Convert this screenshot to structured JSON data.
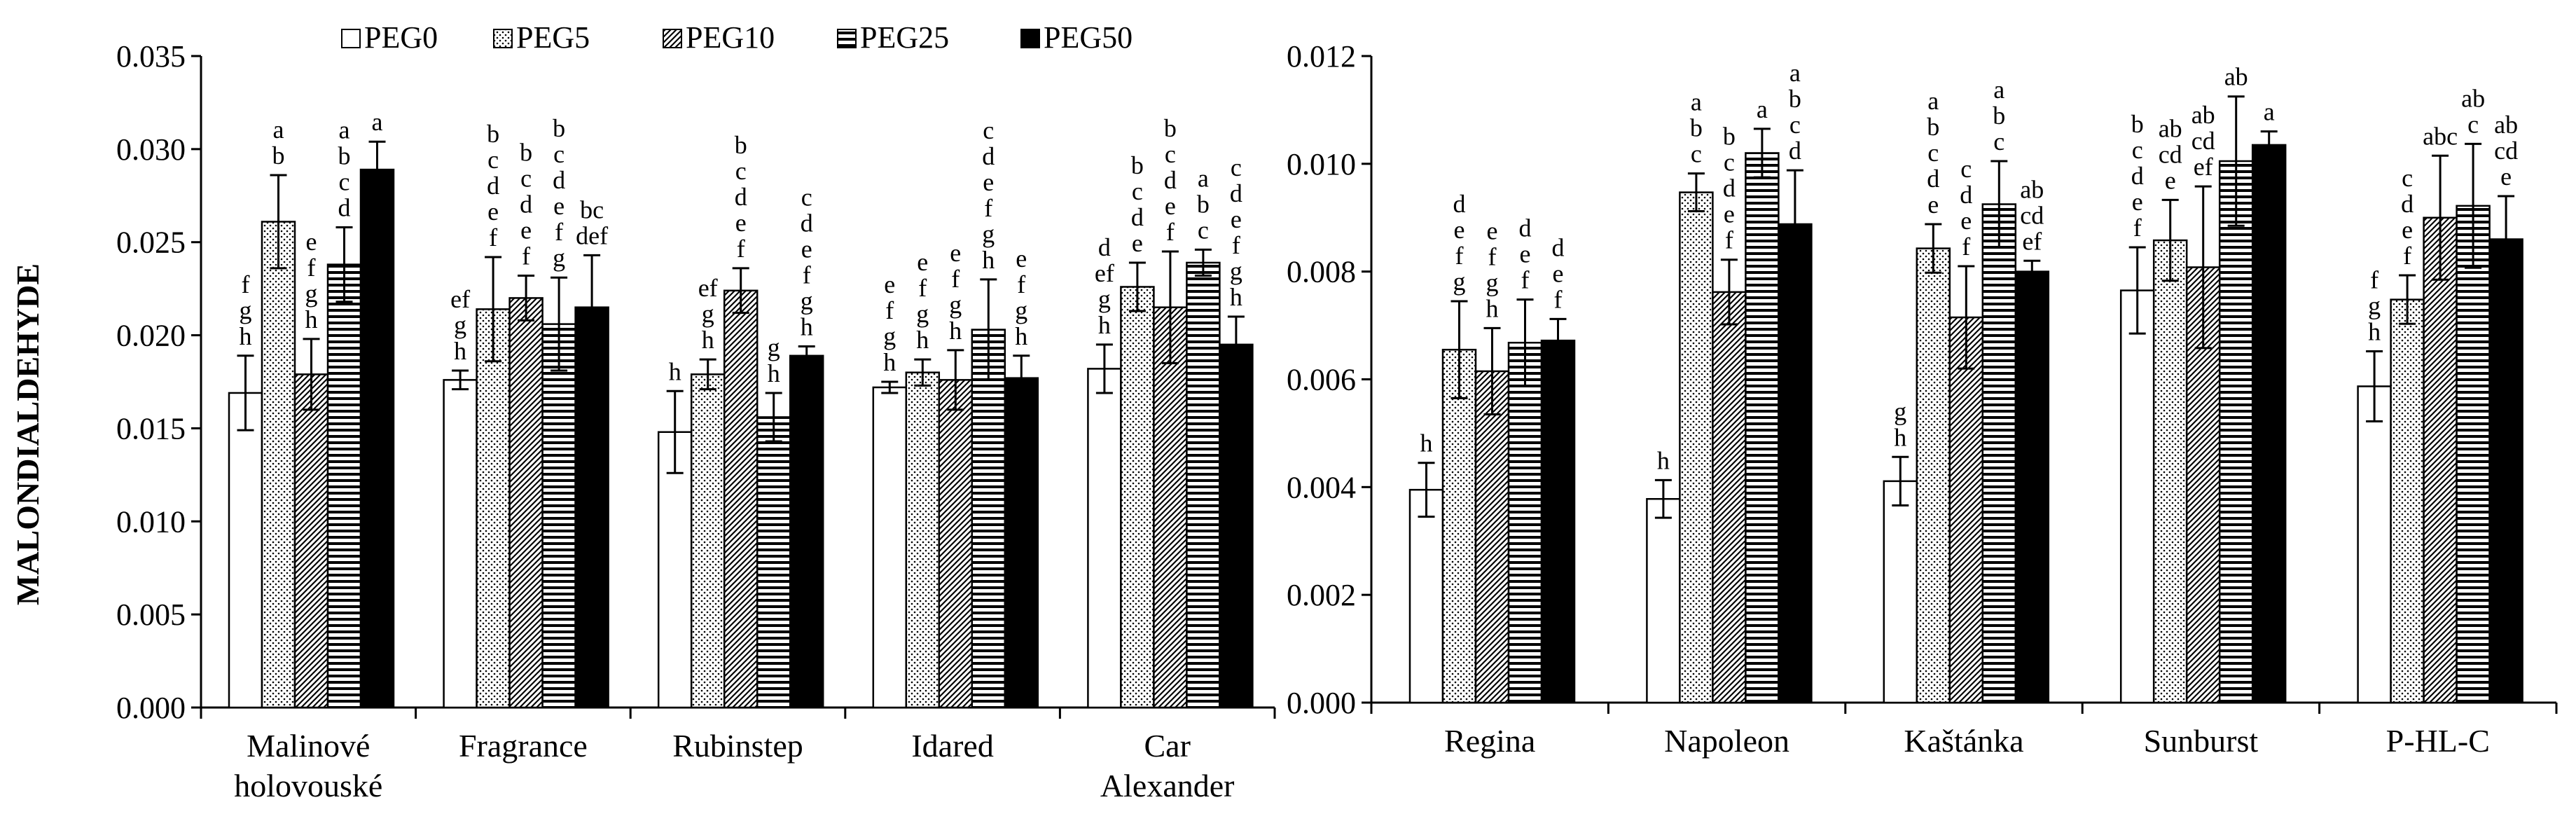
{
  "chart_data": [
    {
      "type": "bar",
      "title": "",
      "xlabel": "",
      "ylabel": "MALONDIALDEHYDE",
      "ylim": [
        0,
        0.035
      ],
      "yticks": [
        "0.000",
        "0.005",
        "0.010",
        "0.015",
        "0.020",
        "0.025",
        "0.030",
        "0.035"
      ],
      "categories": [
        [
          "Malinové",
          "holovouské"
        ],
        [
          "Fragrance"
        ],
        [
          "Rubinstep"
        ],
        [
          "Idared"
        ],
        [
          "Car",
          "Alexander"
        ]
      ],
      "series": [
        {
          "name": "PEG0",
          "values": [
            0.0169,
            0.0176,
            0.0148,
            0.0172,
            0.0182
          ],
          "errors": [
            0.002,
            0.0005,
            0.0022,
            0.0003,
            0.0013
          ],
          "letters": [
            [
              "f",
              "g",
              "h"
            ],
            [
              "ef",
              "g",
              "h"
            ],
            [
              "h"
            ],
            [
              "e",
              "f",
              "g",
              "h"
            ],
            [
              "d",
              "ef",
              "g",
              "h"
            ]
          ]
        },
        {
          "name": "PEG5",
          "values": [
            0.0261,
            0.0214,
            0.0179,
            0.018,
            0.0226
          ],
          "errors": [
            0.0025,
            0.0028,
            0.0008,
            0.0007,
            0.0013
          ],
          "letters": [
            [
              "a",
              "b"
            ],
            [
              "b",
              "c",
              "d",
              "e",
              "f"
            ],
            [
              "ef",
              "g",
              "h"
            ],
            [
              "e",
              "f",
              "g",
              "h"
            ],
            [
              "b",
              "c",
              "d",
              "e"
            ]
          ]
        },
        {
          "name": "PEG10",
          "values": [
            0.0179,
            0.022,
            0.0224,
            0.0176,
            0.0215
          ],
          "errors": [
            0.0019,
            0.0012,
            0.0012,
            0.0016,
            0.003
          ],
          "letters": [
            [
              "e",
              "f",
              "g",
              "h"
            ],
            [
              "b",
              "c",
              "d",
              "e",
              "f"
            ],
            [
              "b",
              "c",
              "d",
              "e",
              "f"
            ],
            [
              "e",
              "f",
              "g",
              "h"
            ],
            [
              "b",
              "c",
              "d",
              "e",
              "f"
            ]
          ]
        },
        {
          "name": "PEG25",
          "values": [
            0.0238,
            0.0206,
            0.0156,
            0.0203,
            0.0239
          ],
          "errors": [
            0.002,
            0.0025,
            0.0013,
            0.0027,
            0.0007
          ],
          "letters": [
            [
              "a",
              "b",
              "c",
              "d"
            ],
            [
              "b",
              "c",
              "d",
              "e",
              "f",
              "g"
            ],
            [
              "g",
              "h"
            ],
            [
              "c",
              "d",
              "e",
              "f",
              "g",
              "h"
            ],
            [
              "a",
              "b",
              "c"
            ]
          ]
        },
        {
          "name": "PEG50",
          "values": [
            0.0289,
            0.0215,
            0.0189,
            0.0177,
            0.0195
          ],
          "errors": [
            0.0015,
            0.0028,
            0.0005,
            0.0012,
            0.0015
          ],
          "letters": [
            [
              "a"
            ],
            [
              "bc",
              "def"
            ],
            [
              "c",
              "d",
              "e",
              "f",
              "g",
              "h"
            ],
            [
              "e",
              "f",
              "g",
              "h"
            ],
            [
              "c",
              "d",
              "e",
              "f",
              "g",
              "h"
            ]
          ]
        }
      ]
    },
    {
      "type": "bar",
      "title": "",
      "xlabel": "",
      "ylabel": "",
      "ylim": [
        0,
        0.012
      ],
      "yticks": [
        "0.000",
        "0.002",
        "0.004",
        "0.006",
        "0.008",
        "0.010",
        "0.012"
      ],
      "categories": [
        [
          "Regina"
        ],
        [
          "Napoleon"
        ],
        [
          "Kaštánka"
        ],
        [
          "Sunburst"
        ],
        [
          "P-HL-C"
        ]
      ],
      "series": [
        {
          "name": "PEG0",
          "values": [
            0.00395,
            0.00378,
            0.00411,
            0.00765,
            0.00587
          ],
          "errors": [
            0.0005,
            0.00035,
            0.00045,
            0.0008,
            0.00065
          ],
          "letters": [
            [
              "h"
            ],
            [
              "h"
            ],
            [
              "g",
              "h"
            ],
            [
              "b",
              "c",
              "d",
              "e",
              "f"
            ],
            [
              "f",
              "g",
              "h"
            ]
          ]
        },
        {
          "name": "PEG5",
          "values": [
            0.00655,
            0.00947,
            0.00843,
            0.00858,
            0.00748
          ],
          "errors": [
            0.0009,
            0.00035,
            0.00045,
            0.00075,
            0.00045
          ],
          "letters": [
            [
              "d",
              "e",
              "f",
              "g"
            ],
            [
              "a",
              "b",
              "c"
            ],
            [
              "a",
              "b",
              "c",
              "d",
              "e"
            ],
            [
              "ab",
              "cd",
              "e"
            ],
            [
              "c",
              "d",
              "e",
              "f"
            ]
          ]
        },
        {
          "name": "PEG10",
          "values": [
            0.00615,
            0.00762,
            0.00715,
            0.00808,
            0.009
          ],
          "errors": [
            0.0008,
            0.0006,
            0.00095,
            0.0015,
            0.00115
          ],
          "letters": [
            [
              "e",
              "f",
              "g",
              "h"
            ],
            [
              "b",
              "c",
              "d",
              "e",
              "f"
            ],
            [
              "c",
              "d",
              "e",
              "f"
            ],
            [
              "ab",
              "cd",
              "ef"
            ],
            [
              "abc"
            ]
          ]
        },
        {
          "name": "PEG25",
          "values": [
            0.00668,
            0.0102,
            0.00925,
            0.01005,
            0.00922
          ],
          "errors": [
            0.0008,
            0.00045,
            0.0008,
            0.0012,
            0.00115
          ],
          "letters": [
            [
              "d",
              "e",
              "f"
            ],
            [
              "a"
            ],
            [
              "a",
              "b",
              "c"
            ],
            [
              "ab"
            ],
            [
              "ab",
              "c"
            ]
          ]
        },
        {
          "name": "PEG50",
          "values": [
            0.00672,
            0.00888,
            0.008,
            0.01035,
            0.0086
          ],
          "errors": [
            0.0004,
            0.001,
            0.0002,
            0.00025,
            0.0008
          ],
          "letters": [
            [
              "d",
              "e",
              "f"
            ],
            [
              "a",
              "b",
              "c",
              "d"
            ],
            [
              "ab",
              "cd",
              "ef"
            ],
            [
              "a"
            ],
            [
              "ab",
              "cd",
              "e"
            ]
          ]
        }
      ]
    }
  ],
  "legend": {
    "items": [
      "PEG0",
      "PEG5",
      "PEG10",
      "PEG25",
      "PEG50"
    ],
    "placement": "top-left"
  }
}
